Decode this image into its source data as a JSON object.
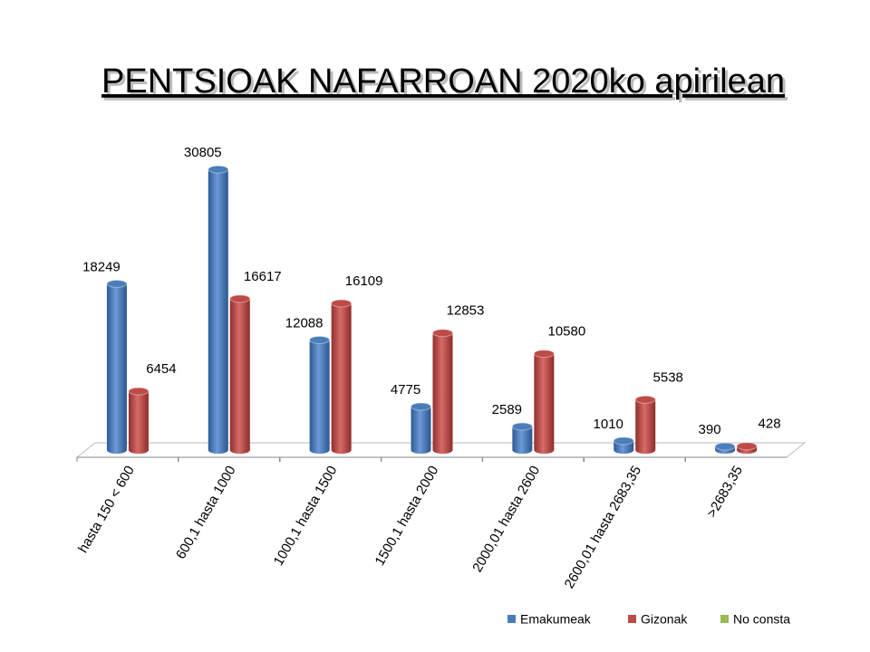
{
  "chart_data": {
    "type": "bar3d",
    "title": "PENTSIOAK  NAFARROAN  2020ko apirilean",
    "categories": [
      "hasta 150 < 600",
      "600,1 hasta 1000",
      "1000,1 hasta 1500",
      "1500,1 hasta 2000",
      "2000,01 hasta 2600",
      "2600,01 hasta 2683,35",
      ">2683,35"
    ],
    "series": [
      {
        "name": "Emakumeak",
        "color": "#4a7ebb",
        "values": [
          18249,
          30805,
          12088,
          4775,
          2589,
          1010,
          390
        ]
      },
      {
        "name": "Gizonak",
        "color": "#be4b48",
        "values": [
          6454,
          16617,
          16109,
          12853,
          10580,
          5538,
          428
        ]
      },
      {
        "name": "No consta",
        "color": "#98b954",
        "values": [
          null,
          null,
          null,
          null,
          null,
          null,
          null
        ]
      }
    ],
    "legend": "bottom-right"
  }
}
